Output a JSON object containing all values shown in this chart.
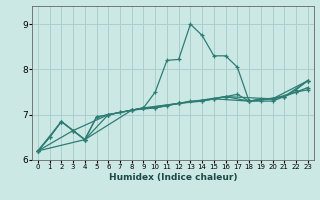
{
  "title": "",
  "xlabel": "Humidex (Indice chaleur)",
  "ylabel": "",
  "bg_color": "#cce8e5",
  "grid_color": "#aacfcc",
  "line_color": "#2d7d74",
  "xlim": [
    -0.5,
    23.5
  ],
  "ylim": [
    6.0,
    9.4
  ],
  "yticks": [
    6,
    7,
    8,
    9
  ],
  "xticks": [
    0,
    1,
    2,
    3,
    4,
    5,
    6,
    7,
    8,
    9,
    10,
    11,
    12,
    13,
    14,
    15,
    16,
    17,
    18,
    19,
    20,
    21,
    22,
    23
  ],
  "lines": [
    {
      "x": [
        0,
        1,
        2,
        3,
        4,
        5,
        6,
        7,
        8,
        9,
        10,
        11,
        12,
        13,
        14,
        15,
        16,
        17,
        18,
        19,
        20,
        21,
        22,
        23
      ],
      "y": [
        6.2,
        6.5,
        6.85,
        6.65,
        6.45,
        6.95,
        7.0,
        7.05,
        7.1,
        7.15,
        7.5,
        8.2,
        8.22,
        9.0,
        8.75,
        8.3,
        8.3,
        8.05,
        7.3,
        7.3,
        7.3,
        7.4,
        7.55,
        7.75
      ]
    },
    {
      "x": [
        0,
        1,
        2,
        3,
        4,
        5,
        6,
        7,
        8,
        9,
        10,
        11,
        12,
        13,
        14,
        15,
        16,
        17,
        18,
        19,
        20,
        21,
        22,
        23
      ],
      "y": [
        6.2,
        6.5,
        6.85,
        6.65,
        6.45,
        6.95,
        7.0,
        7.05,
        7.1,
        7.15,
        7.15,
        7.2,
        7.25,
        7.3,
        7.3,
        7.35,
        7.4,
        7.45,
        7.3,
        7.35,
        7.35,
        7.4,
        7.5,
        7.55
      ]
    },
    {
      "x": [
        0,
        2,
        4,
        6,
        8,
        10,
        12,
        14,
        16,
        18,
        20,
        22,
        23
      ],
      "y": [
        6.2,
        6.85,
        6.45,
        7.0,
        7.1,
        7.15,
        7.25,
        7.3,
        7.4,
        7.3,
        7.35,
        7.5,
        7.6
      ]
    },
    {
      "x": [
        0,
        3,
        6,
        9,
        12,
        15,
        18,
        21,
        23
      ],
      "y": [
        6.2,
        6.65,
        7.0,
        7.15,
        7.25,
        7.35,
        7.3,
        7.4,
        7.75
      ]
    },
    {
      "x": [
        0,
        4,
        8,
        12,
        16,
        20,
        23
      ],
      "y": [
        6.2,
        6.45,
        7.1,
        7.25,
        7.4,
        7.35,
        7.75
      ]
    }
  ]
}
